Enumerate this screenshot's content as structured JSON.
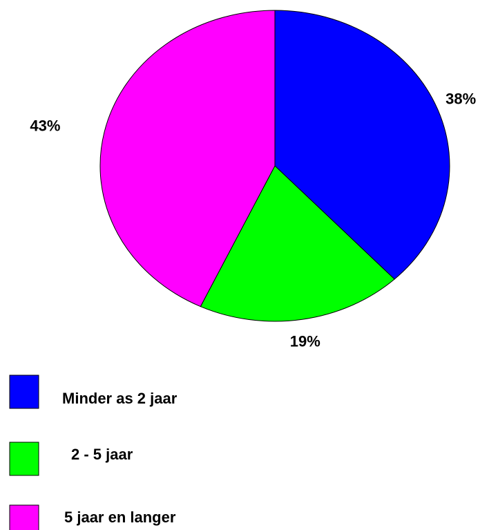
{
  "chart_data": {
    "type": "pie",
    "categories": [
      "Minder as 2 jaar",
      "2 - 5 jaar",
      "5 jaar en langer"
    ],
    "values": [
      38,
      19,
      43
    ],
    "value_labels": [
      "38%",
      "19%",
      "43%"
    ],
    "colors": [
      "#0000ff",
      "#00ff00",
      "#ff00ff"
    ],
    "legend": "bottom-left"
  }
}
